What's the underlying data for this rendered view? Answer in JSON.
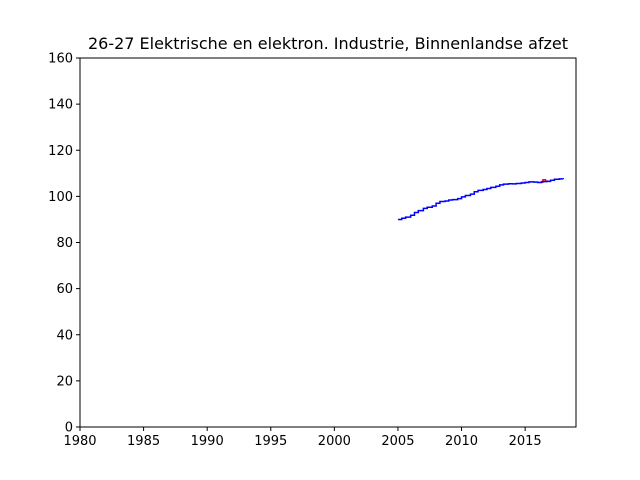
{
  "chart_data": {
    "type": "line",
    "title": "26-27 Elektrische en elektron. Industrie, Binnenlandse afzet",
    "xlabel": "",
    "ylabel": "",
    "xlim": [
      1980,
      2019
    ],
    "ylim": [
      0,
      160
    ],
    "xticks": [
      1980,
      1985,
      1990,
      1995,
      2000,
      2005,
      2010,
      2015
    ],
    "yticks": [
      0,
      20,
      40,
      60,
      80,
      100,
      120,
      140,
      160
    ],
    "grid": false,
    "series": [
      {
        "color": "#ff0000",
        "x": [
          2016.2,
          2016.4,
          2016.6,
          2016.8
        ],
        "y": [
          106.2,
          107.2,
          106.6,
          106.3
        ]
      },
      {
        "color": "#0000ff",
        "x": [
          2005.0,
          2005.3,
          2005.6,
          2006.0,
          2006.3,
          2006.6,
          2007.0,
          2007.3,
          2007.7,
          2008.0,
          2008.3,
          2008.7,
          2009.0,
          2009.3,
          2009.7,
          2010.0,
          2010.3,
          2010.7,
          2011.0,
          2011.3,
          2011.7,
          2012.0,
          2012.3,
          2012.7,
          2013.0,
          2013.3,
          2013.7,
          2014.0,
          2014.3,
          2014.7,
          2015.0,
          2015.3,
          2015.7,
          2016.0,
          2016.3,
          2016.7,
          2017.0,
          2017.3,
          2017.7,
          2018.0
        ],
        "y": [
          90.0,
          90.5,
          91.0,
          91.8,
          93.0,
          93.8,
          94.8,
          95.3,
          95.8,
          97.0,
          97.8,
          98.0,
          98.4,
          98.6,
          99.0,
          99.8,
          100.4,
          101.0,
          102.0,
          102.6,
          103.0,
          103.4,
          103.9,
          104.4,
          105.0,
          105.3,
          105.5,
          105.4,
          105.6,
          105.8,
          106.0,
          106.3,
          106.2,
          106.0,
          106.4,
          106.5,
          107.0,
          107.4,
          107.6,
          107.5
        ]
      }
    ]
  }
}
